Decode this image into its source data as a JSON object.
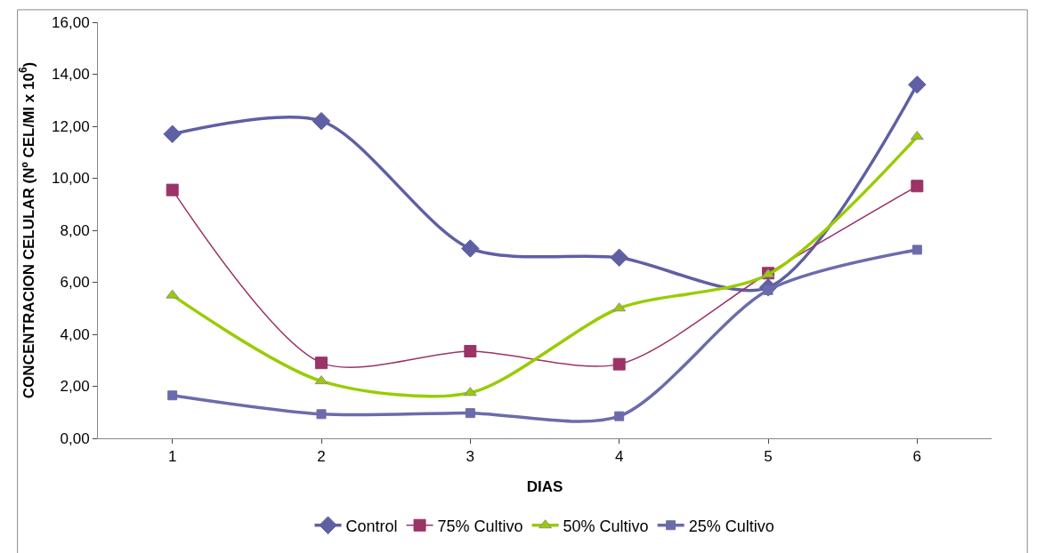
{
  "chart_data": {
    "type": "line",
    "xlabel": "DIAS",
    "ylabel": "CONCENTRACION CELULAR (Nº CEL/Ml x 10$^{6}$)",
    "categories": [
      "1",
      "2",
      "3",
      "4",
      "5",
      "6"
    ],
    "series": [
      {
        "name": "Control",
        "color": "#5f5fa3",
        "marker": "diamond",
        "values": [
          11.7,
          12.2,
          7.3,
          6.95,
          5.8,
          13.6
        ]
      },
      {
        "name": "75% Cultivo",
        "color": "#9b3366",
        "marker": "square",
        "values": [
          9.55,
          2.9,
          3.35,
          2.85,
          6.35,
          9.7
        ]
      },
      {
        "name": "50% Cultivo",
        "color": "#99cc00",
        "marker": "triangle",
        "values": [
          5.5,
          2.2,
          1.75,
          5.0,
          6.3,
          11.6
        ]
      },
      {
        "name": "25% Cultivo",
        "color": "#6b6bac",
        "marker": "square",
        "values": [
          1.65,
          0.93,
          0.97,
          0.85,
          5.7,
          7.25
        ]
      }
    ],
    "ylim": [
      0,
      16
    ],
    "yticks": [
      {
        "value": 0,
        "label": "0,00"
      },
      {
        "value": 2,
        "label": "2,00"
      },
      {
        "value": 4,
        "label": "4,00"
      },
      {
        "value": 6,
        "label": "6,00"
      },
      {
        "value": 8,
        "label": "8,00"
      },
      {
        "value": 10,
        "label": "10,00"
      },
      {
        "value": 12,
        "label": "12,00"
      },
      {
        "value": 14,
        "label": "14,00"
      },
      {
        "value": 16,
        "label": "16,00"
      }
    ],
    "legend": "bottom",
    "line_style": "solid"
  }
}
